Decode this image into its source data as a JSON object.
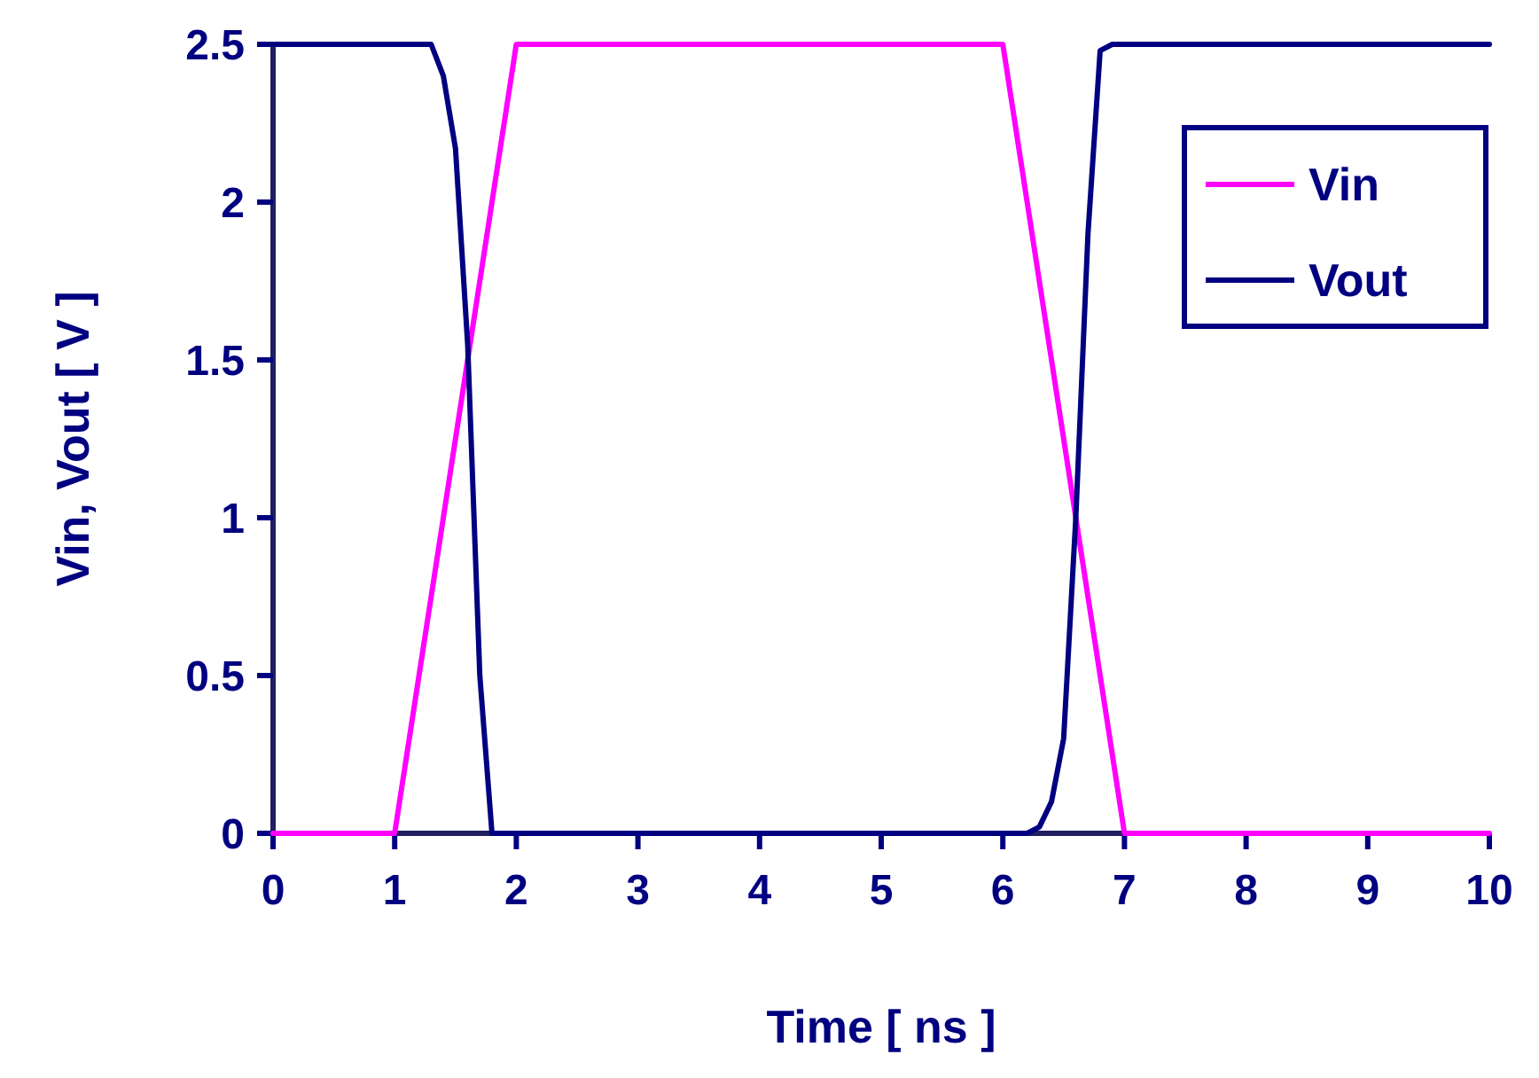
{
  "chart_data": {
    "type": "line",
    "xlabel": "Time [ ns ]",
    "ylabel": "Vin, Vout [ V ]",
    "xlim": [
      0,
      10
    ],
    "ylim": [
      0,
      2.5
    ],
    "xticks": [
      0,
      1,
      2,
      3,
      4,
      5,
      6,
      7,
      8,
      9,
      10
    ],
    "yticks": [
      0,
      0.5,
      1,
      1.5,
      2,
      2.5
    ],
    "grid": false,
    "legend": "top right",
    "marker": "none",
    "line_style": "solid",
    "series": [
      {
        "name": "Vin",
        "color": "#ff00ff",
        "x": [
          0,
          1,
          1.1,
          1.2,
          1.4,
          1.6,
          1.8,
          1.9,
          2,
          6,
          6.1,
          6.3,
          6.5,
          6.7,
          6.8,
          7,
          10
        ],
        "values": [
          0,
          0,
          0.25,
          0.5,
          1,
          1.5,
          2,
          2.25,
          2.5,
          2.5,
          2.25,
          1.75,
          1.25,
          0.75,
          0.5,
          0,
          0
        ]
      },
      {
        "name": "Vout",
        "color": "#000080",
        "x": [
          0,
          1.3,
          1.4,
          1.5,
          1.6,
          1.7,
          1.8,
          6.2,
          6.3,
          6.4,
          6.5,
          6.6,
          6.7,
          6.8,
          6.9,
          10
        ],
        "values": [
          2.5,
          2.5,
          2.4,
          2.17,
          1.55,
          0.5,
          0,
          0,
          0.02,
          0.1,
          0.3,
          1,
          1.9,
          2.48,
          2.5,
          2.5
        ]
      }
    ]
  }
}
